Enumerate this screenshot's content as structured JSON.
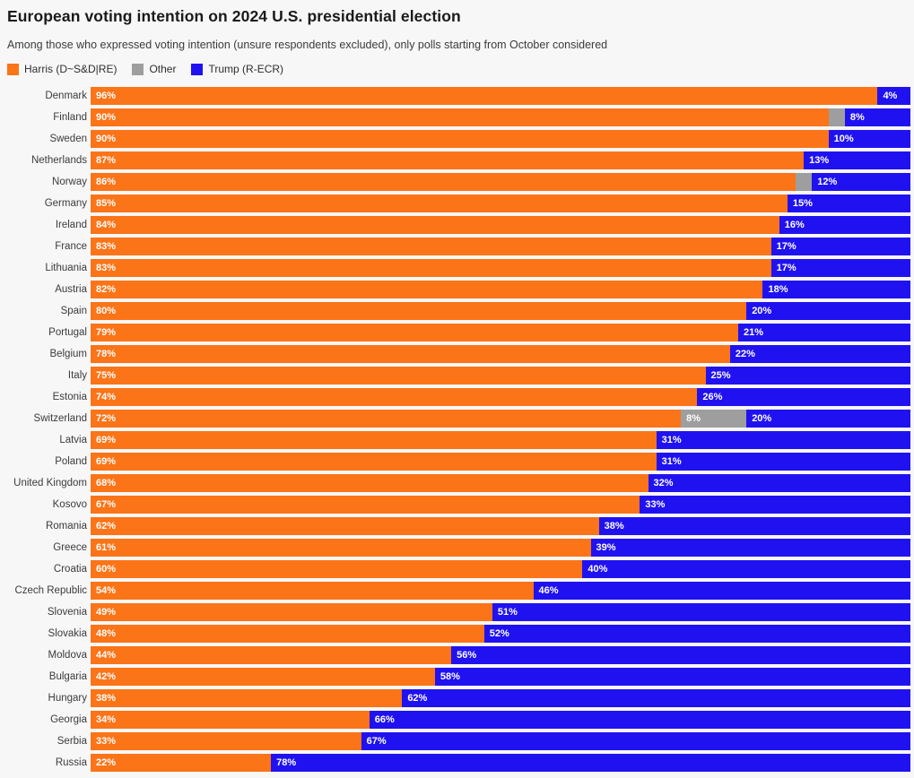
{
  "header": {
    "title": "European voting intention on 2024 U.S. presidential election",
    "subtitle": "Among those who expressed voting intention (unsure respondents excluded), only polls starting from October considered"
  },
  "legend": [
    {
      "label": "Harris (D~S&D|RE)",
      "color": "#fb7418",
      "icon": "harris-swatch-icon"
    },
    {
      "label": "Other",
      "color": "#9e9e9e",
      "icon": "other-swatch-icon"
    },
    {
      "label": "Trump (R-ECR)",
      "color": "#2012f0",
      "icon": "trump-swatch-icon"
    }
  ],
  "colors": {
    "background": "#f7f7f7",
    "harris": "#fb7418",
    "other": "#9e9e9e",
    "trump": "#2012f0",
    "value_text": "#ffffff",
    "label_text": "#3b3b3b"
  },
  "chart_data": {
    "type": "bar",
    "orientation": "horizontal",
    "stacked": true,
    "title": "European voting intention on 2024 U.S. presidential election",
    "subtitle": "Among those who expressed voting intention (unsure respondents excluded), only polls starting from October considered",
    "value_suffix": "%",
    "xlim": [
      0,
      100
    ],
    "grid": false,
    "legend_position": "top-left",
    "label_min_value_shown": 4,
    "categories": [
      "Denmark",
      "Finland",
      "Sweden",
      "Netherlands",
      "Norway",
      "Germany",
      "Ireland",
      "France",
      "Lithuania",
      "Austria",
      "Spain",
      "Portugal",
      "Belgium",
      "Italy",
      "Estonia",
      "Switzerland",
      "Latvia",
      "Poland",
      "United Kingdom",
      "Kosovo",
      "Romania",
      "Greece",
      "Croatia",
      "Czech Republic",
      "Slovenia",
      "Slovakia",
      "Moldova",
      "Bulgaria",
      "Hungary",
      "Georgia",
      "Serbia",
      "Russia"
    ],
    "series": [
      {
        "name": "Harris (D~S&D|RE)",
        "color": "#fb7418",
        "values": [
          96,
          90,
          90,
          87,
          86,
          85,
          84,
          83,
          83,
          82,
          80,
          79,
          78,
          75,
          74,
          72,
          69,
          69,
          68,
          67,
          62,
          61,
          60,
          54,
          49,
          48,
          44,
          42,
          38,
          34,
          33,
          22
        ]
      },
      {
        "name": "Other",
        "color": "#9e9e9e",
        "values": [
          0,
          2,
          0,
          0,
          2,
          0,
          0,
          0,
          0,
          0,
          0,
          0,
          0,
          0,
          0,
          8,
          0,
          0,
          0,
          0,
          0,
          0,
          0,
          0,
          0,
          0,
          0,
          0,
          0,
          0,
          0,
          0
        ]
      },
      {
        "name": "Trump (R-ECR)",
        "color": "#2012f0",
        "values": [
          4,
          8,
          10,
          13,
          12,
          15,
          16,
          17,
          17,
          18,
          20,
          21,
          22,
          25,
          26,
          20,
          31,
          31,
          32,
          33,
          38,
          39,
          40,
          46,
          51,
          52,
          56,
          58,
          62,
          66,
          67,
          78
        ]
      }
    ]
  }
}
